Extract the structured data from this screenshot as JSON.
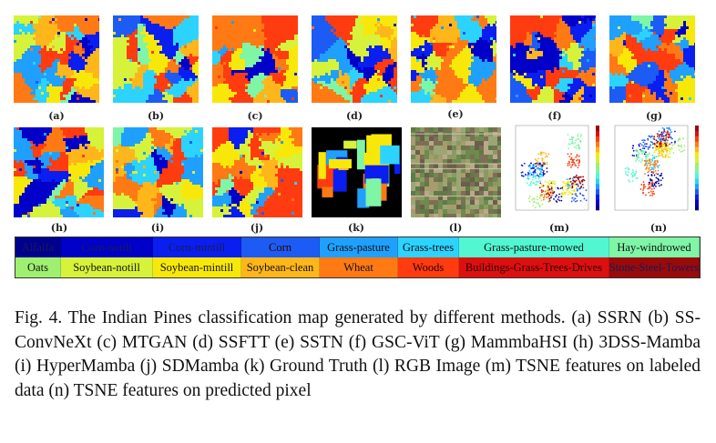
{
  "figure": {
    "panels": [
      {
        "label": "(a)",
        "kind": "map",
        "seed": 11
      },
      {
        "label": "(b)",
        "kind": "map",
        "seed": 23
      },
      {
        "label": "(c)",
        "kind": "map",
        "seed": 37
      },
      {
        "label": "(d)",
        "kind": "map",
        "seed": 41
      },
      {
        "label": "(e)",
        "kind": "map",
        "seed": 53
      },
      {
        "label": "(f)",
        "kind": "map",
        "seed": 67
      },
      {
        "label": "(g)",
        "kind": "map",
        "seed": 79
      },
      {
        "label": "(h)",
        "kind": "map",
        "seed": 83
      },
      {
        "label": "(i)",
        "kind": "map",
        "seed": 97
      },
      {
        "label": "(j)",
        "kind": "map",
        "seed": 101
      },
      {
        "label": "(k)",
        "kind": "ground-truth",
        "seed": 5
      },
      {
        "label": "(l)",
        "kind": "rgb",
        "seed": 7
      },
      {
        "label": "(m)",
        "kind": "tsne",
        "seed": 13
      },
      {
        "label": "(n)",
        "kind": "tsne",
        "seed": 19
      }
    ],
    "legend": [
      {
        "label": "Alfalfa",
        "color": "#00008f"
      },
      {
        "label": "Corn-notill",
        "color": "#0000c8"
      },
      {
        "label": "Corn-mintill",
        "color": "#0a1ef0"
      },
      {
        "label": "Corn",
        "color": "#1c5cf5"
      },
      {
        "label": "Grass-pasture",
        "color": "#1fa0ff"
      },
      {
        "label": "Grass-trees",
        "color": "#2dd3ff"
      },
      {
        "label": "Grass-pasture-mowed",
        "color": "#52f7d2"
      },
      {
        "label": "Hay-windrowed",
        "color": "#7ff5a6"
      },
      {
        "label": "Oats",
        "color": "#9ff070"
      },
      {
        "label": "Soybean-notill",
        "color": "#d6f23a"
      },
      {
        "label": "Soybean-mintill",
        "color": "#f8e80a"
      },
      {
        "label": "Soybean-clean",
        "color": "#ffb61a"
      },
      {
        "label": "Wheat",
        "color": "#ff7a14"
      },
      {
        "label": "Woods",
        "color": "#ff3c10"
      },
      {
        "label": "Buildings-Grass-Trees-Drives",
        "color": "#dd1010"
      },
      {
        "label": "Stone-Steel-Towers",
        "color": "#9a0a0a"
      }
    ],
    "caption": "Fig. 4.  The Indian Pines classification map generated by different methods. (a) SSRN (b) SS-ConvNeXt (c) MTGAN (d) SSFTT (e) SSTN (f) GSC-ViT (g) MammbaHSI (h) 3DSS-Mamba (i) HyperMamba (j) SDMamba (k) Ground Truth (l) RGB Image (m) TSNE features on labeled data (n) TSNE features on predicted pixel"
  }
}
